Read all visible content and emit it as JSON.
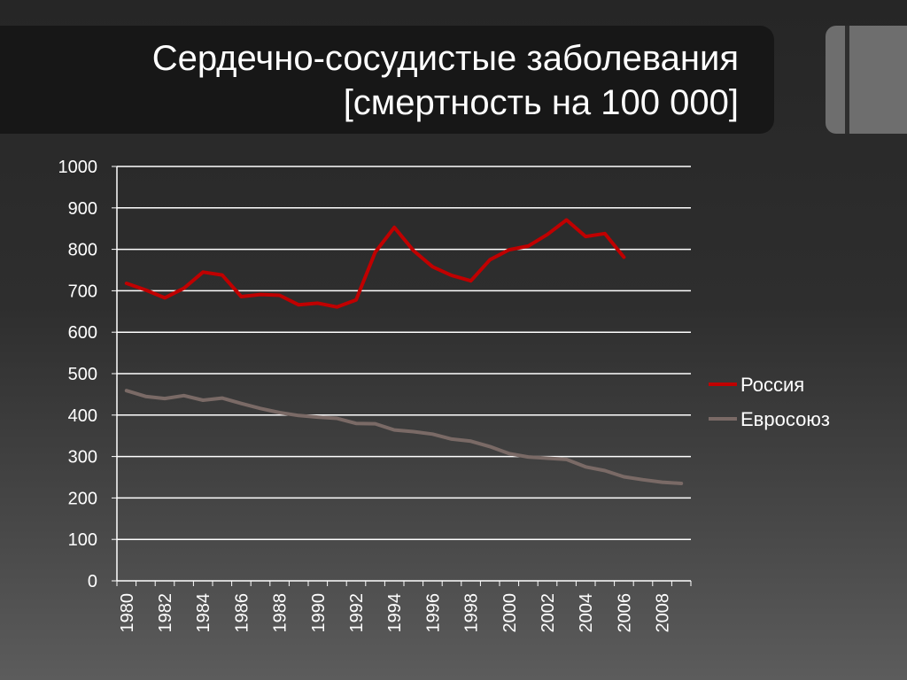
{
  "slide": {
    "title_line1": "Сердечно-сосудистые заболевания",
    "title_line2": "[смертность на 100 000]"
  },
  "colors": {
    "russia": "#c00000",
    "eu": "#7a6a66",
    "grid": "#ffffff",
    "text": "#ffffff"
  },
  "chart_data": {
    "type": "line",
    "title": "Сердечно-сосудистые заболевания [смертность на 100 000]",
    "ylim": [
      0,
      1000
    ],
    "y_ticks": [
      0,
      100,
      200,
      300,
      400,
      500,
      600,
      700,
      800,
      900,
      1000
    ],
    "x_range": [
      1980,
      2009
    ],
    "x_tick_labels": [
      "1980",
      "1982",
      "1984",
      "1986",
      "1988",
      "1990",
      "1992",
      "1994",
      "1996",
      "1998",
      "2000",
      "2002",
      "2004",
      "2006",
      "2008"
    ],
    "grid": true,
    "legend_position": "right",
    "series": [
      {
        "name": "Россия",
        "color": "#c00000",
        "x": [
          1980,
          1981,
          1982,
          1983,
          1984,
          1985,
          1986,
          1987,
          1988,
          1989,
          1990,
          1991,
          1992,
          1993,
          1994,
          1995,
          1996,
          1997,
          1998,
          1999,
          2000,
          2001,
          2002,
          2003,
          2004,
          2005,
          2006
        ],
        "values": [
          718,
          702,
          683,
          706,
          745,
          738,
          686,
          691,
          689,
          666,
          670,
          661,
          678,
          793,
          853,
          797,
          758,
          737,
          724,
          775,
          799,
          808,
          836,
          871,
          831,
          838,
          781
        ]
      },
      {
        "name": "Евросоюз",
        "color": "#7a6a66",
        "x": [
          1980,
          1981,
          1982,
          1983,
          1984,
          1985,
          1986,
          1987,
          1988,
          1989,
          1990,
          1991,
          1992,
          1993,
          1994,
          1995,
          1996,
          1997,
          1998,
          1999,
          2000,
          2001,
          2002,
          2003,
          2004,
          2005,
          2006,
          2007,
          2008,
          2009
        ],
        "values": [
          459,
          445,
          440,
          447,
          436,
          441,
          428,
          416,
          406,
          399,
          395,
          392,
          380,
          379,
          364,
          360,
          354,
          342,
          337,
          324,
          307,
          299,
          296,
          293,
          275,
          266,
          251,
          244,
          238,
          235
        ]
      }
    ]
  }
}
